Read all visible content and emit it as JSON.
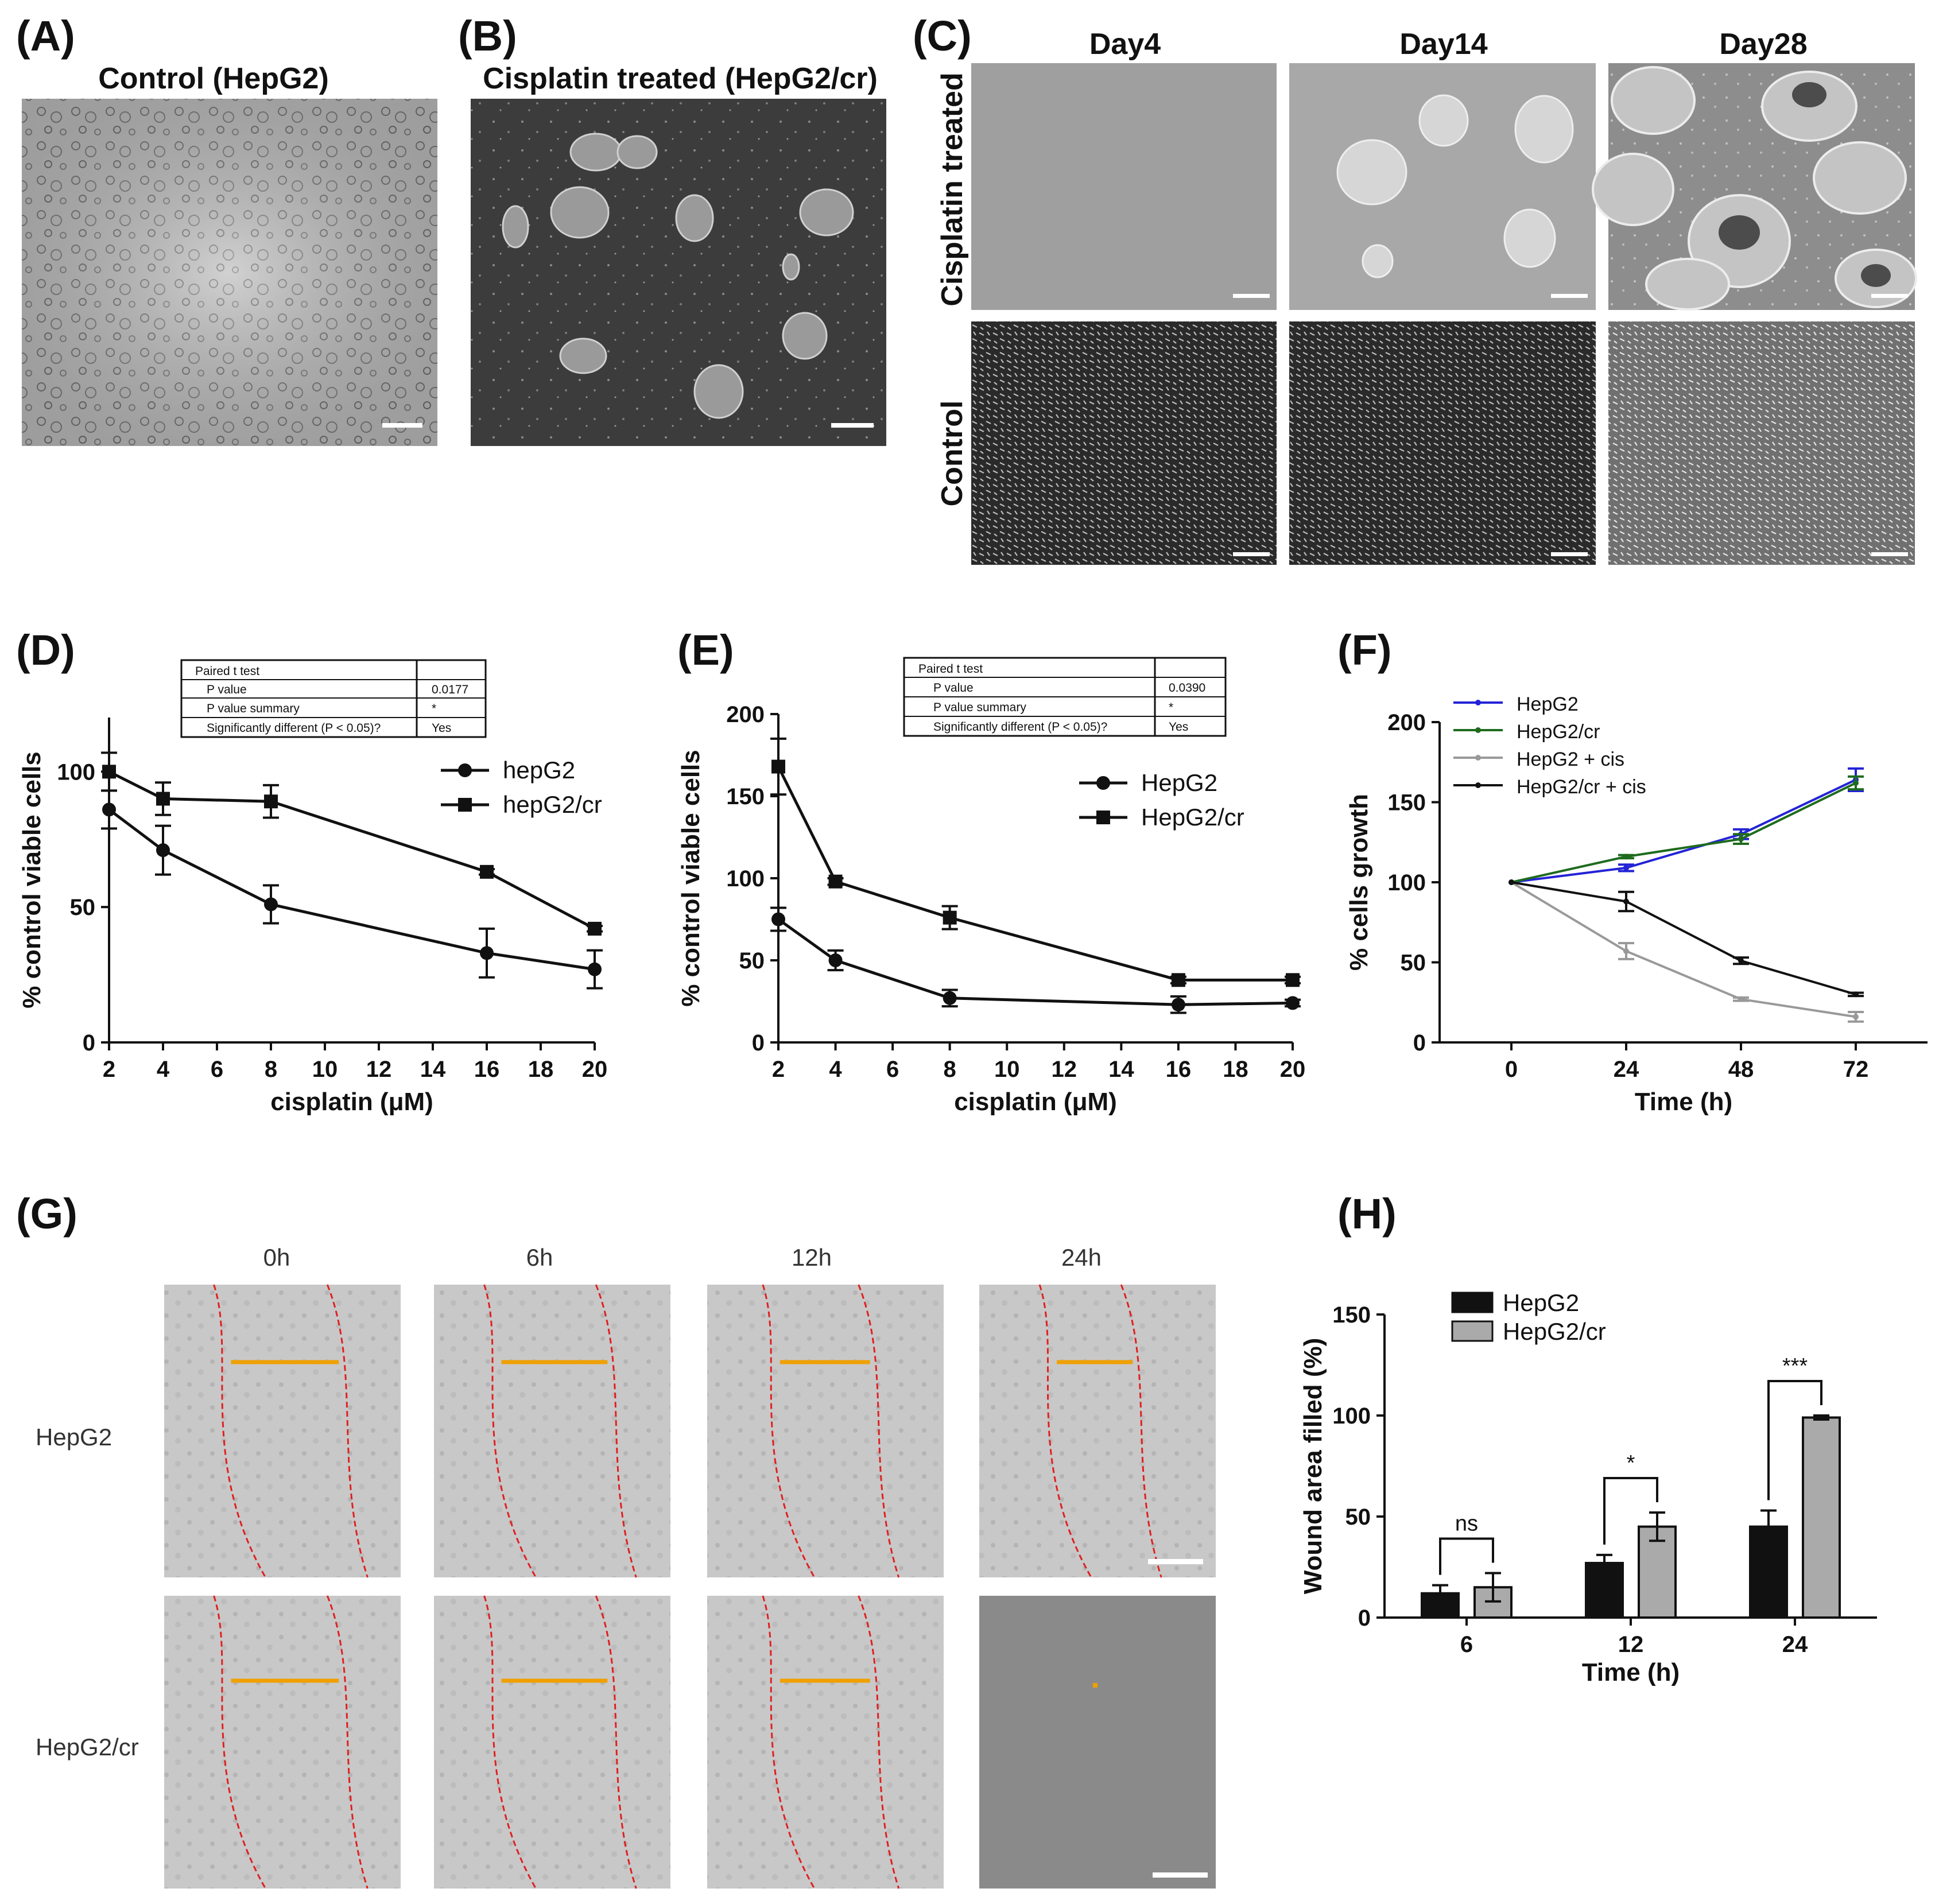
{
  "panels": {
    "A": {
      "label": "(A)",
      "title": "Control (HepG2)"
    },
    "B": {
      "label": "(B)",
      "title": "Cisplatin treated (HepG2/cr)"
    },
    "C": {
      "label": "(C)",
      "cols": [
        "Day4",
        "Day14",
        "Day28"
      ],
      "rows": [
        "Cisplatin treated",
        "Control"
      ]
    },
    "D": {
      "label": "(D)"
    },
    "E": {
      "label": "(E)"
    },
    "F": {
      "label": "(F)"
    },
    "G": {
      "label": "(G)",
      "times": [
        "0h",
        "6h",
        "12h",
        "24h"
      ],
      "rows": [
        "HepG2",
        "HepG2/cr"
      ]
    },
    "H": {
      "label": "(H)"
    }
  },
  "stats_D": {
    "rows": [
      [
        "Paired t test",
        ""
      ],
      [
        "P value",
        "0.0177"
      ],
      [
        "P value summary",
        "*"
      ],
      [
        "Significantly different (P < 0.05)?",
        "Yes"
      ]
    ]
  },
  "stats_E": {
    "rows": [
      [
        "Paired t test",
        ""
      ],
      [
        "P value",
        "0.0390"
      ],
      [
        "P value summary",
        "*"
      ],
      [
        "Significantly different (P < 0.05)?",
        "Yes"
      ]
    ]
  },
  "chart_data": [
    {
      "id": "D",
      "type": "line",
      "xlabel": "cisplatin (μM)",
      "ylabel": "% control viable cells",
      "xlim": [
        2,
        20
      ],
      "ylim": [
        0,
        120
      ],
      "xticks": [
        2,
        4,
        6,
        8,
        10,
        12,
        14,
        16,
        18,
        20
      ],
      "yticks": [
        0,
        50,
        100
      ],
      "x": [
        2,
        4,
        8,
        16,
        20
      ],
      "series": [
        {
          "name": "hepG2",
          "marker": "circle",
          "color": "#111111",
          "values": [
            86,
            71,
            51,
            33,
            27
          ],
          "err": [
            7,
            9,
            7,
            9,
            7
          ]
        },
        {
          "name": "hepG2/cr",
          "marker": "square",
          "color": "#111111",
          "values": [
            100,
            90,
            89,
            63,
            42
          ],
          "err": [
            7,
            6,
            6,
            1,
            1
          ]
        }
      ]
    },
    {
      "id": "E",
      "type": "line",
      "xlabel": "cisplatin (μM)",
      "ylabel": "% control viable cells",
      "xlim": [
        2,
        20
      ],
      "ylim": [
        0,
        200
      ],
      "xticks": [
        2,
        4,
        6,
        8,
        10,
        12,
        14,
        16,
        18,
        20
      ],
      "yticks": [
        0,
        50,
        100,
        150,
        200
      ],
      "x": [
        2,
        4,
        8,
        16,
        20
      ],
      "series": [
        {
          "name": "HepG2",
          "marker": "circle",
          "color": "#111111",
          "values": [
            75,
            50,
            27,
            23,
            24
          ],
          "err": [
            7,
            6,
            5,
            5,
            2
          ]
        },
        {
          "name": "HepG2/cr",
          "marker": "square",
          "color": "#111111",
          "values": [
            168,
            98,
            76,
            38,
            38
          ],
          "err": [
            17,
            2,
            7,
            2,
            2
          ]
        }
      ]
    },
    {
      "id": "F",
      "type": "line",
      "xlabel": "Time (h)",
      "ylabel": "% cells growth",
      "xlim": [
        -15,
        87
      ],
      "ylim": [
        0,
        200
      ],
      "xticks": [
        0,
        24,
        48,
        72
      ],
      "yticks": [
        0,
        50,
        100,
        150,
        200
      ],
      "x": [
        0,
        24,
        48,
        72
      ],
      "series": [
        {
          "name": "HepG2",
          "color": "#2323d6",
          "values": [
            100,
            109,
            130,
            164
          ],
          "err": [
            0,
            2,
            3,
            7
          ]
        },
        {
          "name": "HepG2/cr",
          "color": "#1e6b1e",
          "values": [
            100,
            116,
            127,
            162
          ],
          "err": [
            0,
            1,
            3,
            4
          ]
        },
        {
          "name": "HepG2 + cis",
          "color": "#999999",
          "values": [
            100,
            57,
            27,
            16
          ],
          "err": [
            0,
            5,
            1,
            3
          ]
        },
        {
          "name": "HepG2/cr + cis",
          "color": "#111111",
          "values": [
            100,
            88,
            51,
            30
          ],
          "err": [
            0,
            6,
            2,
            1
          ]
        }
      ]
    },
    {
      "id": "H",
      "type": "bar",
      "xlabel": "Time (h)",
      "ylabel": "Wound area filled (%)",
      "ylim": [
        0,
        150
      ],
      "yticks": [
        0,
        50,
        100,
        150
      ],
      "categories": [
        "6",
        "12",
        "24"
      ],
      "series": [
        {
          "name": "HepG2",
          "color": "#111111",
          "values": [
            12,
            27,
            45
          ],
          "err": [
            4,
            4,
            8
          ]
        },
        {
          "name": "HepG2/cr",
          "color": "#aaaaaa",
          "values": [
            15,
            45,
            99
          ],
          "err": [
            7,
            7,
            1
          ]
        }
      ],
      "significance": [
        "ns",
        "*",
        "***"
      ]
    }
  ]
}
